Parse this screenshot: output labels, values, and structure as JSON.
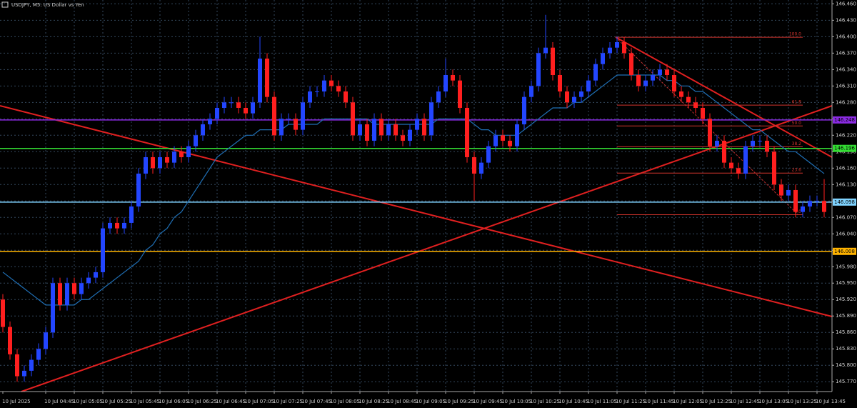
{
  "chart_data": {
    "type": "candlestick",
    "title": "USDJPY, M5: US Dollar vs Yen",
    "up_color": "#2346ff",
    "down_color": "#ff1f1f",
    "ma_color": "#1f6fb5",
    "grid": true,
    "ylim": [
      145.752,
      146.467
    ],
    "yticks": [
      {
        "value": 145.77,
        "label": "145.770"
      },
      {
        "value": 145.8,
        "label": "145.800"
      },
      {
        "value": 145.83,
        "label": "145.830"
      },
      {
        "value": 145.86,
        "label": "145.860"
      },
      {
        "value": 145.89,
        "label": "145.890"
      },
      {
        "value": 145.92,
        "label": "145.920"
      },
      {
        "value": 145.95,
        "label": "145.950"
      },
      {
        "value": 145.98,
        "label": "145.980"
      },
      {
        "value": 146.01,
        "label": "146.010"
      },
      {
        "value": 146.04,
        "label": "146.040"
      },
      {
        "value": 146.07,
        "label": "146.070"
      },
      {
        "value": 146.1,
        "label": "146.100"
      },
      {
        "value": 146.13,
        "label": "146.130"
      },
      {
        "value": 146.16,
        "label": "146.160"
      },
      {
        "value": 146.19,
        "label": "146.190"
      },
      {
        "value": 146.22,
        "label": "146.220"
      },
      {
        "value": 146.25,
        "label": "146.250"
      },
      {
        "value": 146.28,
        "label": "146.280"
      },
      {
        "value": 146.31,
        "label": "146.310"
      },
      {
        "value": 146.34,
        "label": "146.340"
      },
      {
        "value": 146.37,
        "label": "146.370"
      },
      {
        "value": 146.4,
        "label": "146.400"
      },
      {
        "value": 146.43,
        "label": "146.430"
      },
      {
        "value": 146.46,
        "label": "146.460"
      }
    ],
    "categories": [
      "10 Jul 2025",
      null,
      null,
      null,
      null,
      null,
      "10 Jul 04:45",
      null,
      null,
      null,
      "10 Jul 05:05",
      null,
      null,
      null,
      "10 Jul 05:25",
      null,
      null,
      null,
      "10 Jul 05:45",
      null,
      null,
      null,
      "10 Jul 06:05",
      null,
      null,
      null,
      "10 Jul 06:25",
      null,
      null,
      null,
      "10 Jul 06:45",
      null,
      null,
      null,
      "10 Jul 07:05",
      null,
      null,
      null,
      "10 Jul 07:25",
      null,
      null,
      null,
      "10 Jul 07:45",
      null,
      null,
      null,
      "10 Jul 08:05",
      null,
      null,
      null,
      "10 Jul 08:25",
      null,
      null,
      null,
      "10 Jul 08:45",
      null,
      null,
      null,
      "10 Jul 09:05",
      null,
      null,
      null,
      "10 Jul 09:25",
      null,
      null,
      null,
      "10 Jul 09:45",
      null,
      null,
      null,
      "10 Jul 10:05",
      null,
      null,
      null,
      "10 Jul 10:25",
      null,
      null,
      null,
      "10 Jul 10:45",
      null,
      null,
      null,
      "10 Jul 11:05",
      null,
      null,
      null,
      "10 Jul 11:25",
      null,
      null,
      null,
      "10 Jul 11:45",
      null,
      null,
      null,
      "10 Jul 12:05",
      null,
      null,
      null,
      "10 Jul 12:25",
      null,
      null,
      null,
      "10 Jul 12:45",
      null,
      null,
      null,
      "10 Jul 13:05",
      null,
      null,
      null,
      "10 Jul 13:25",
      null,
      null,
      null,
      "10 Jul 13:45",
      null
    ],
    "open": [
      145.92,
      145.87,
      145.82,
      145.78,
      145.79,
      145.81,
      145.83,
      145.86,
      145.95,
      145.91,
      145.95,
      145.93,
      145.95,
      145.96,
      145.97,
      146.05,
      146.06,
      146.05,
      146.06,
      146.09,
      146.15,
      146.18,
      146.16,
      146.18,
      146.17,
      146.19,
      146.18,
      146.2,
      146.22,
      146.24,
      146.25,
      146.27,
      146.28,
      146.28,
      146.27,
      146.26,
      146.28,
      146.36,
      146.29,
      146.22,
      146.25,
      146.25,
      146.23,
      146.28,
      146.3,
      146.3,
      146.32,
      146.31,
      146.3,
      146.28,
      146.22,
      146.24,
      146.21,
      146.25,
      146.22,
      146.24,
      146.22,
      146.21,
      146.23,
      146.25,
      146.22,
      146.28,
      146.3,
      146.33,
      146.32,
      146.27,
      146.18,
      146.15,
      146.17,
      146.2,
      146.22,
      146.21,
      146.2,
      146.24,
      146.29,
      146.31,
      146.37,
      146.38,
      146.33,
      146.3,
      146.28,
      146.29,
      146.3,
      146.32,
      146.35,
      146.37,
      146.38,
      146.39,
      146.37,
      146.33,
      146.31,
      146.32,
      146.33,
      146.34,
      146.33,
      146.3,
      146.29,
      146.28,
      146.27,
      146.25,
      146.2,
      146.21,
      146.17,
      146.16,
      146.15,
      146.2,
      146.21,
      146.21,
      146.19,
      146.13,
      146.11,
      146.12,
      146.08,
      146.09,
      146.1,
      146.1
    ],
    "high": [
      145.93,
      145.88,
      145.83,
      145.8,
      145.82,
      145.84,
      145.87,
      145.96,
      145.96,
      145.96,
      145.96,
      145.96,
      145.97,
      145.98,
      146.06,
      146.07,
      146.07,
      146.07,
      146.1,
      146.16,
      146.19,
      146.19,
      146.19,
      146.19,
      146.2,
      146.2,
      146.21,
      146.23,
      146.25,
      146.26,
      146.28,
      146.29,
      146.29,
      146.29,
      146.28,
      146.29,
      146.4,
      146.37,
      146.3,
      146.26,
      146.26,
      146.26,
      146.29,
      146.31,
      146.31,
      146.33,
      146.33,
      146.32,
      146.31,
      146.29,
      146.25,
      146.25,
      146.26,
      146.26,
      146.25,
      146.25,
      146.23,
      146.24,
      146.26,
      146.26,
      146.29,
      146.31,
      146.36,
      146.34,
      146.33,
      146.28,
      146.19,
      146.18,
      146.21,
      146.23,
      146.23,
      146.22,
      146.25,
      146.3,
      146.32,
      146.38,
      146.44,
      146.39,
      146.34,
      146.31,
      146.3,
      146.31,
      146.33,
      146.36,
      146.38,
      146.39,
      146.4,
      146.4,
      146.38,
      146.34,
      146.33,
      146.34,
      146.35,
      146.35,
      146.34,
      146.31,
      146.3,
      146.29,
      146.28,
      146.26,
      146.22,
      146.22,
      146.18,
      146.17,
      146.21,
      146.22,
      146.22,
      146.22,
      146.2,
      146.14,
      146.13,
      146.13,
      146.1,
      146.11,
      146.11,
      146.14
    ],
    "low": [
      145.86,
      145.81,
      145.77,
      145.77,
      145.78,
      145.8,
      145.82,
      145.85,
      145.9,
      145.9,
      145.92,
      145.92,
      145.94,
      145.95,
      145.96,
      146.04,
      146.04,
      146.04,
      146.05,
      146.08,
      146.14,
      146.15,
      146.15,
      146.16,
      146.16,
      146.17,
      146.17,
      146.19,
      146.21,
      146.23,
      146.24,
      146.26,
      146.27,
      146.26,
      146.25,
      146.25,
      146.27,
      146.28,
      146.21,
      146.21,
      146.24,
      146.22,
      146.22,
      146.27,
      146.29,
      146.29,
      146.3,
      146.29,
      146.27,
      146.21,
      146.21,
      146.2,
      146.2,
      146.21,
      146.21,
      146.21,
      146.2,
      146.2,
      146.22,
      146.21,
      146.21,
      146.27,
      146.29,
      146.31,
      146.26,
      146.17,
      146.1,
      146.14,
      146.16,
      146.19,
      146.2,
      146.19,
      146.19,
      146.23,
      146.28,
      146.3,
      146.36,
      146.32,
      146.29,
      146.27,
      146.27,
      146.28,
      146.29,
      146.31,
      146.34,
      146.36,
      146.37,
      146.36,
      146.32,
      146.3,
      146.3,
      146.31,
      146.32,
      146.32,
      146.29,
      146.28,
      146.27,
      146.26,
      146.24,
      146.19,
      146.19,
      146.16,
      146.15,
      146.14,
      146.14,
      146.19,
      146.2,
      146.18,
      146.12,
      146.1,
      146.1,
      146.07,
      146.07,
      146.08,
      146.09,
      146.07
    ],
    "close": [
      145.87,
      145.82,
      145.78,
      145.79,
      145.81,
      145.83,
      145.86,
      145.95,
      145.91,
      145.95,
      145.93,
      145.95,
      145.96,
      145.97,
      146.05,
      146.06,
      146.05,
      146.06,
      146.09,
      146.15,
      146.18,
      146.16,
      146.18,
      146.17,
      146.19,
      146.18,
      146.2,
      146.22,
      146.24,
      146.25,
      146.27,
      146.28,
      146.28,
      146.27,
      146.26,
      146.28,
      146.36,
      146.29,
      146.22,
      146.25,
      146.25,
      146.23,
      146.28,
      146.3,
      146.3,
      146.32,
      146.31,
      146.3,
      146.28,
      146.22,
      146.24,
      146.21,
      146.25,
      146.22,
      146.24,
      146.22,
      146.21,
      146.23,
      146.25,
      146.22,
      146.28,
      146.3,
      146.33,
      146.32,
      146.27,
      146.18,
      146.15,
      146.17,
      146.2,
      146.22,
      146.21,
      146.2,
      146.24,
      146.29,
      146.31,
      146.37,
      146.38,
      146.33,
      146.3,
      146.28,
      146.29,
      146.3,
      146.32,
      146.35,
      146.37,
      146.38,
      146.39,
      146.37,
      146.33,
      146.31,
      146.32,
      146.33,
      146.34,
      146.33,
      146.3,
      146.29,
      146.28,
      146.27,
      146.25,
      146.2,
      146.21,
      146.17,
      146.16,
      146.15,
      146.2,
      146.21,
      146.21,
      146.19,
      146.13,
      146.11,
      146.12,
      146.08,
      146.09,
      146.1,
      146.1,
      146.08
    ],
    "ma": [
      145.97,
      145.96,
      145.95,
      145.94,
      145.93,
      145.92,
      145.91,
      145.91,
      145.91,
      145.91,
      145.91,
      145.92,
      145.92,
      145.93,
      145.94,
      145.95,
      145.96,
      145.97,
      145.98,
      145.99,
      146.01,
      146.02,
      146.04,
      146.05,
      146.07,
      146.08,
      146.1,
      146.12,
      146.14,
      146.16,
      146.18,
      146.19,
      146.2,
      146.21,
      146.22,
      146.22,
      146.23,
      146.23,
      146.23,
      146.23,
      146.24,
      146.24,
      146.24,
      146.24,
      146.24,
      146.25,
      146.25,
      146.25,
      146.25,
      146.25,
      146.25,
      146.25,
      146.24,
      146.24,
      146.24,
      146.24,
      146.24,
      146.24,
      146.24,
      146.24,
      146.24,
      146.25,
      146.25,
      146.25,
      146.25,
      146.25,
      146.24,
      146.23,
      146.23,
      146.22,
      146.22,
      146.22,
      146.22,
      146.23,
      146.24,
      146.25,
      146.26,
      146.27,
      146.27,
      146.27,
      146.28,
      146.28,
      146.29,
      146.3,
      146.31,
      146.32,
      146.33,
      146.33,
      146.33,
      146.33,
      146.33,
      146.33,
      146.33,
      146.32,
      146.32,
      146.31,
      146.31,
      146.3,
      146.3,
      146.29,
      146.28,
      146.27,
      146.26,
      146.25,
      146.24,
      146.23,
      146.23,
      146.22,
      146.21,
      146.2,
      146.19,
      146.19,
      146.18,
      146.17,
      146.16,
      146.15
    ],
    "levels": [
      {
        "value": 146.248,
        "color": "#8a2be2"
      },
      {
        "value": 146.196,
        "color": "#33dd33"
      },
      {
        "value": 146.098,
        "color": "#7fd3ff"
      },
      {
        "value": 146.008,
        "color": "#ffb300"
      }
    ],
    "fib": {
      "color": "#d0342c",
      "levels": [
        {
          "label": "100.0",
          "value": 146.399
        },
        {
          "label": "61.8",
          "value": 146.275
        },
        {
          "label": "50.0",
          "value": 146.237
        },
        {
          "label": "38.2",
          "value": 146.199
        },
        {
          "label": "23.6",
          "value": 146.151
        },
        {
          "label": "0.0",
          "value": 146.075
        }
      ]
    }
  }
}
